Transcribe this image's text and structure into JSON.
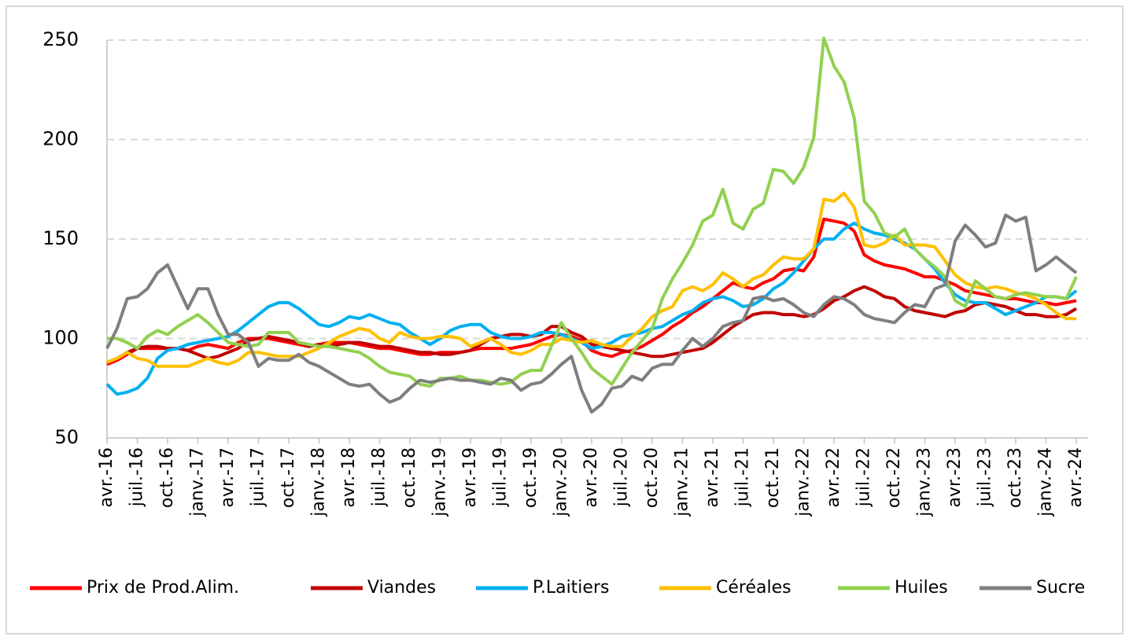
{
  "chart_data": {
    "type": "line",
    "categories": [
      "avr.-16",
      null,
      null,
      "juil.-16",
      null,
      null,
      "oct.-16",
      null,
      null,
      "janv.-17",
      null,
      null,
      "avr.-17",
      null,
      null,
      "juil.-17",
      null,
      null,
      "oct.-17",
      null,
      null,
      "janv.-18",
      null,
      null,
      "avr.-18",
      null,
      null,
      "juil.-18",
      null,
      null,
      "oct.-18",
      null,
      null,
      "janv.-19",
      null,
      null,
      "avr.-19",
      null,
      null,
      "juil.-19",
      null,
      null,
      "oct.-19",
      null,
      null,
      "janv.-20",
      null,
      null,
      "avr.-20",
      null,
      null,
      "juil.-20",
      null,
      null,
      "oct.-20",
      null,
      null,
      "janv.-21",
      null,
      null,
      "avr.-21",
      null,
      null,
      "juil.-21",
      null,
      null,
      "oct.-21",
      null,
      null,
      "janv.-22",
      null,
      null,
      "avr.-22",
      null,
      null,
      "juil.-22",
      null,
      null,
      "oct.-22",
      null,
      null,
      "janv.-23",
      null,
      null,
      "avr.-23",
      null,
      null,
      "juil.-23",
      null,
      null,
      "oct.-23",
      null,
      null,
      "janv.-24",
      null,
      null,
      "avr.-24"
    ],
    "series": [
      {
        "name": "Prix de Prod.Alim.",
        "color": "#ff0000",
        "values": [
          87,
          89,
          92,
          95,
          95,
          95,
          95,
          95,
          94,
          96,
          97,
          96,
          95,
          98,
          100,
          100,
          100,
          99,
          98,
          97,
          96,
          97,
          98,
          98,
          98,
          97,
          96,
          95,
          95,
          94,
          93,
          92,
          92,
          93,
          93,
          93,
          94,
          95,
          95,
          95,
          95,
          96,
          97,
          99,
          101,
          102,
          101,
          99,
          94,
          92,
          91,
          93,
          94,
          96,
          99,
          102,
          106,
          109,
          113,
          116,
          120,
          124,
          128,
          126,
          125,
          128,
          130,
          134,
          135,
          134,
          141,
          160,
          159,
          158,
          154,
          142,
          139,
          137,
          136,
          135,
          133,
          131,
          131,
          129,
          127,
          124,
          123,
          122,
          121,
          120,
          120,
          119,
          118,
          118,
          117,
          118,
          119
        ]
      },
      {
        "name": "Viandes",
        "color": "#c00000",
        "values": [
          88,
          90,
          93,
          95,
          96,
          96,
          95,
          95,
          94,
          92,
          90,
          91,
          93,
          95,
          99,
          100,
          101,
          100,
          99,
          98,
          96,
          97,
          96,
          97,
          98,
          98,
          97,
          96,
          96,
          95,
          94,
          93,
          93,
          92,
          92,
          93,
          94,
          97,
          100,
          101,
          102,
          102,
          101,
          102,
          106,
          106,
          103,
          101,
          97,
          96,
          95,
          94,
          93,
          92,
          91,
          91,
          92,
          93,
          94,
          95,
          98,
          102,
          106,
          109,
          112,
          113,
          113,
          112,
          112,
          111,
          112,
          115,
          119,
          121,
          124,
          126,
          124,
          121,
          120,
          116,
          114,
          113,
          112,
          111,
          113,
          114,
          117,
          118,
          117,
          116,
          114,
          112,
          112,
          111,
          111,
          112,
          115
        ]
      },
      {
        "name": "P.Laitiers",
        "color": "#00b0f0",
        "values": [
          77,
          72,
          73,
          75,
          80,
          90,
          94,
          95,
          97,
          98,
          99,
          100,
          101,
          104,
          108,
          112,
          116,
          118,
          118,
          115,
          111,
          107,
          106,
          108,
          111,
          110,
          112,
          110,
          108,
          107,
          103,
          100,
          97,
          100,
          104,
          106,
          107,
          107,
          103,
          101,
          100,
          100,
          101,
          103,
          103,
          102,
          100,
          98,
          95,
          96,
          98,
          101,
          102,
          103,
          105,
          106,
          109,
          112,
          114,
          118,
          120,
          121,
          119,
          116,
          117,
          120,
          125,
          128,
          133,
          139,
          145,
          150,
          150,
          155,
          158,
          155,
          153,
          152,
          150,
          148,
          145,
          140,
          135,
          128,
          122,
          119,
          118,
          118,
          115,
          112,
          114,
          116,
          118,
          121,
          121,
          120,
          124
        ]
      },
      {
        "name": "Céréales",
        "color": "#ffc000",
        "values": [
          88,
          90,
          93,
          90,
          89,
          86,
          86,
          86,
          86,
          88,
          90,
          88,
          87,
          89,
          93,
          93,
          92,
          91,
          91,
          91,
          93,
          95,
          98,
          101,
          103,
          105,
          104,
          100,
          98,
          103,
          101,
          100,
          100,
          101,
          101,
          100,
          96,
          98,
          100,
          97,
          93,
          92,
          94,
          97,
          97,
          100,
          99,
          98,
          99,
          97,
          96,
          96,
          101,
          105,
          111,
          114,
          116,
          124,
          126,
          124,
          127,
          133,
          130,
          126,
          130,
          132,
          137,
          141,
          140,
          140,
          145,
          170,
          169,
          173,
          166,
          147,
          146,
          148,
          152,
          147,
          147,
          147,
          146,
          139,
          132,
          128,
          126,
          125,
          126,
          125,
          123,
          122,
          120,
          117,
          113,
          110,
          110
        ]
      },
      {
        "name": "Huiles",
        "color": "#92d050",
        "values": [
          100,
          100,
          98,
          95,
          101,
          104,
          102,
          106,
          109,
          112,
          108,
          103,
          98,
          97,
          96,
          97,
          103,
          103,
          103,
          98,
          97,
          96,
          96,
          95,
          94,
          93,
          90,
          86,
          83,
          82,
          81,
          77,
          76,
          80,
          80,
          81,
          79,
          79,
          78,
          77,
          78,
          82,
          84,
          84,
          96,
          108,
          100,
          93,
          85,
          81,
          77,
          85,
          93,
          99,
          105,
          120,
          130,
          138,
          147,
          159,
          162,
          175,
          158,
          155,
          165,
          168,
          185,
          184,
          178,
          186,
          201,
          251,
          237,
          229,
          211,
          169,
          163,
          153,
          151,
          155,
          145,
          140,
          136,
          131,
          119,
          116,
          129,
          125,
          121,
          120,
          122,
          123,
          122,
          121,
          121,
          120,
          131
        ]
      },
      {
        "name": "Sucre",
        "color": "#7f7f7f",
        "values": [
          95,
          105,
          120,
          121,
          125,
          133,
          137,
          126,
          115,
          125,
          125,
          112,
          102,
          102,
          98,
          86,
          90,
          89,
          89,
          92,
          88,
          86,
          83,
          80,
          77,
          76,
          77,
          72,
          68,
          70,
          75,
          79,
          78,
          79,
          80,
          79,
          79,
          78,
          77,
          80,
          79,
          74,
          77,
          78,
          82,
          87,
          91,
          74,
          63,
          67,
          75,
          76,
          81,
          79,
          85,
          87,
          87,
          94,
          100,
          96,
          100,
          106,
          108,
          109,
          120,
          121,
          119,
          120,
          117,
          113,
          111,
          117,
          121,
          120,
          117,
          112,
          110,
          109,
          108,
          113,
          117,
          116,
          125,
          127,
          149,
          157,
          152,
          146,
          148,
          162,
          159,
          161,
          134,
          137,
          141,
          137,
          133
        ]
      }
    ],
    "ylim": [
      50,
      250
    ],
    "yticks": [
      50,
      100,
      150,
      200,
      250
    ],
    "grid": true,
    "legend": "bottom"
  }
}
